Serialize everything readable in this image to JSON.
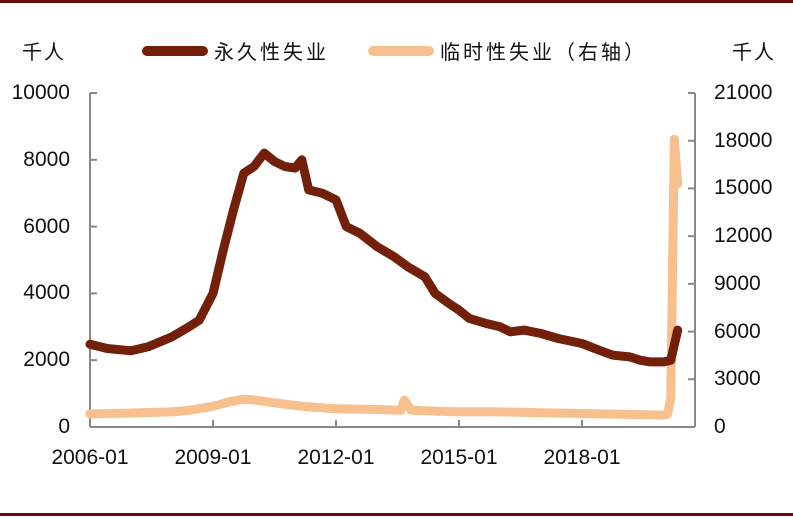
{
  "colors": {
    "permanent": "#72200a",
    "temporary": "#f8bf8f",
    "axis": "#888888",
    "frame": "#6b0a0a"
  },
  "left_unit": "千人",
  "right_unit": "千人",
  "legend": {
    "permanent": "永久性失业",
    "temporary": "临时性失业（右轴）"
  },
  "left_axis": {
    "ticks": [
      "10000",
      "8000",
      "6000",
      "4000",
      "2000",
      "0"
    ]
  },
  "right_axis": {
    "ticks": [
      "21000",
      "18000",
      "15000",
      "12000",
      "9000",
      "6000",
      "3000",
      "0"
    ]
  },
  "x_axis": {
    "ticks": [
      "2006-01",
      "2009-01",
      "2012-01",
      "2015-01",
      "2018-01"
    ]
  },
  "chart_data": {
    "type": "line",
    "title": "",
    "xlabel": "",
    "ylabel": "千人",
    "ylabel_right": "千人",
    "ylim": [
      0,
      10000
    ],
    "ylim_right": [
      0,
      21000
    ],
    "grid": false,
    "legend_position": "top",
    "x_ticks": [
      "2006-01",
      "2009-01",
      "2012-01",
      "2015-01",
      "2018-01"
    ],
    "series": [
      {
        "name": "永久性失业",
        "axis": "left",
        "x": [
          "2006-01",
          "2006-06",
          "2007-01",
          "2007-06",
          "2008-01",
          "2008-06",
          "2008-09",
          "2009-01",
          "2009-04",
          "2009-07",
          "2009-10",
          "2010-01",
          "2010-04",
          "2010-07",
          "2010-10",
          "2011-01",
          "2011-03",
          "2011-05",
          "2011-09",
          "2012-01",
          "2012-04",
          "2012-08",
          "2013-01",
          "2013-06",
          "2013-10",
          "2014-03",
          "2014-06",
          "2014-10",
          "2015-01",
          "2015-04",
          "2015-09",
          "2016-01",
          "2016-04",
          "2016-08",
          "2017-01",
          "2017-06",
          "2018-01",
          "2018-06",
          "2018-10",
          "2019-03",
          "2019-06",
          "2019-09",
          "2020-01",
          "2020-03",
          "2020-05"
        ],
        "values": [
          2480,
          2350,
          2280,
          2400,
          2700,
          3000,
          3200,
          4000,
          5300,
          6500,
          7600,
          7800,
          8200,
          7950,
          7800,
          7750,
          8000,
          7100,
          7000,
          6800,
          6000,
          5800,
          5400,
          5100,
          4800,
          4500,
          4000,
          3700,
          3500,
          3250,
          3100,
          3000,
          2850,
          2900,
          2800,
          2650,
          2500,
          2300,
          2150,
          2100,
          2000,
          1950,
          1950,
          2000,
          2900
        ]
      },
      {
        "name": "临时性失业（右轴）",
        "axis": "right",
        "x": [
          "2006-01",
          "2007-01",
          "2008-01",
          "2008-06",
          "2009-01",
          "2009-06",
          "2009-10",
          "2010-01",
          "2010-06",
          "2011-01",
          "2011-06",
          "2012-01",
          "2013-01",
          "2013-08",
          "2013-09",
          "2013-11",
          "2014-06",
          "2015-01",
          "2016-01",
          "2017-01",
          "2018-01",
          "2019-01",
          "2020-01",
          "2020-02",
          "2020-03",
          "2020-04",
          "2020-05"
        ],
        "values": [
          820,
          880,
          950,
          1050,
          1300,
          1600,
          1750,
          1700,
          1550,
          1350,
          1250,
          1150,
          1100,
          1050,
          1700,
          1050,
          1000,
          950,
          950,
          900,
          850,
          800,
          750,
          800,
          1800,
          18100,
          15300
        ]
      }
    ]
  }
}
